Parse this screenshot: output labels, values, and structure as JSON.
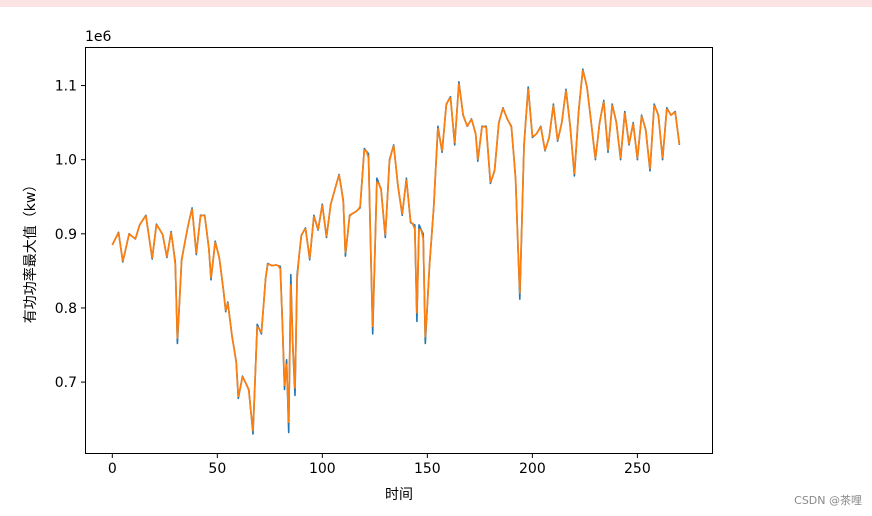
{
  "colors": {
    "top_bar": "#fde4e4",
    "series_blue": "#1f77b4",
    "series_orange": "#ff7f0e",
    "axes": "#000000"
  },
  "watermark": "CSDN @茶哩",
  "chart_data": {
    "type": "line",
    "title": "",
    "xlabel": "时间",
    "ylabel": "有功功率最大值（kw）",
    "offset_text": "1e6",
    "xlim": [
      -13,
      286
    ],
    "ylim": [
      603000,
      1152000
    ],
    "xticks": [
      0,
      50,
      100,
      150,
      200,
      250
    ],
    "yticks": [
      700000,
      800000,
      900000,
      1000000,
      1100000
    ],
    "ytick_labels": [
      "0.7",
      "0.8",
      "0.9",
      "1.0",
      "1.1"
    ],
    "grid": false,
    "legend": "none",
    "anchors": [
      [
        0,
        885000
      ],
      [
        3,
        902000
      ],
      [
        5,
        862000
      ],
      [
        8,
        900000
      ],
      [
        11,
        893000
      ],
      [
        13,
        912000
      ],
      [
        16,
        925000
      ],
      [
        19,
        866000
      ],
      [
        21,
        913000
      ],
      [
        24,
        899000
      ],
      [
        26,
        868000
      ],
      [
        28,
        903000
      ],
      [
        30,
        862000
      ],
      [
        31,
        752000
      ],
      [
        33,
        865000
      ],
      [
        36,
        910000
      ],
      [
        38,
        935000
      ],
      [
        40,
        872000
      ],
      [
        42,
        925000
      ],
      [
        44,
        925000
      ],
      [
        46,
        880000
      ],
      [
        47,
        838000
      ],
      [
        49,
        890000
      ],
      [
        51,
        867000
      ],
      [
        53,
        822000
      ],
      [
        54,
        795000
      ],
      [
        55,
        808000
      ],
      [
        57,
        762000
      ],
      [
        59,
        728000
      ],
      [
        60,
        678000
      ],
      [
        62,
        708000
      ],
      [
        65,
        690000
      ],
      [
        67,
        630000
      ],
      [
        69,
        778000
      ],
      [
        71,
        765000
      ],
      [
        73,
        840000
      ],
      [
        74,
        860000
      ],
      [
        76,
        857000
      ],
      [
        78,
        858000
      ],
      [
        80,
        856000
      ],
      [
        81,
        780000
      ],
      [
        82,
        690000
      ],
      [
        83,
        730000
      ],
      [
        84,
        632000
      ],
      [
        85,
        845000
      ],
      [
        86,
        745000
      ],
      [
        87,
        682000
      ],
      [
        88,
        845000
      ],
      [
        90,
        898000
      ],
      [
        92,
        908000
      ],
      [
        94,
        865000
      ],
      [
        96,
        925000
      ],
      [
        98,
        905000
      ],
      [
        100,
        940000
      ],
      [
        102,
        895000
      ],
      [
        104,
        940000
      ],
      [
        106,
        960000
      ],
      [
        108,
        980000
      ],
      [
        110,
        945000
      ],
      [
        111,
        870000
      ],
      [
        113,
        925000
      ],
      [
        116,
        930000
      ],
      [
        118,
        935000
      ],
      [
        120,
        1015000
      ],
      [
        122,
        1008000
      ],
      [
        124,
        765000
      ],
      [
        126,
        975000
      ],
      [
        128,
        960000
      ],
      [
        130,
        895000
      ],
      [
        132,
        1000000
      ],
      [
        134,
        1020000
      ],
      [
        136,
        965000
      ],
      [
        138,
        925000
      ],
      [
        140,
        975000
      ],
      [
        142,
        915000
      ],
      [
        144,
        912000
      ],
      [
        145,
        782000
      ],
      [
        146,
        912000
      ],
      [
        148,
        900000
      ],
      [
        149,
        752000
      ],
      [
        151,
        858000
      ],
      [
        153,
        935000
      ],
      [
        155,
        1045000
      ],
      [
        157,
        1010000
      ],
      [
        159,
        1075000
      ],
      [
        161,
        1085000
      ],
      [
        163,
        1020000
      ],
      [
        165,
        1105000
      ],
      [
        167,
        1060000
      ],
      [
        169,
        1045000
      ],
      [
        171,
        1055000
      ],
      [
        173,
        1035000
      ],
      [
        174,
        998000
      ],
      [
        176,
        1045000
      ],
      [
        178,
        1045000
      ],
      [
        180,
        968000
      ],
      [
        182,
        985000
      ],
      [
        184,
        1050000
      ],
      [
        186,
        1070000
      ],
      [
        188,
        1055000
      ],
      [
        190,
        1045000
      ],
      [
        192,
        975000
      ],
      [
        194,
        812000
      ],
      [
        196,
        1020000
      ],
      [
        198,
        1098000
      ],
      [
        200,
        1030000
      ],
      [
        202,
        1035000
      ],
      [
        204,
        1045000
      ],
      [
        206,
        1012000
      ],
      [
        208,
        1030000
      ],
      [
        210,
        1075000
      ],
      [
        212,
        1025000
      ],
      [
        214,
        1050000
      ],
      [
        216,
        1095000
      ],
      [
        218,
        1045000
      ],
      [
        220,
        978000
      ],
      [
        222,
        1065000
      ],
      [
        224,
        1122000
      ],
      [
        226,
        1098000
      ],
      [
        228,
        1050000
      ],
      [
        230,
        1000000
      ],
      [
        232,
        1050000
      ],
      [
        234,
        1080000
      ],
      [
        236,
        1010000
      ],
      [
        238,
        1075000
      ],
      [
        240,
        1050000
      ],
      [
        242,
        1000000
      ],
      [
        244,
        1065000
      ],
      [
        246,
        1020000
      ],
      [
        248,
        1050000
      ],
      [
        250,
        1000000
      ],
      [
        252,
        1060000
      ],
      [
        254,
        1040000
      ],
      [
        256,
        985000
      ],
      [
        258,
        1075000
      ],
      [
        260,
        1060000
      ],
      [
        262,
        1000000
      ],
      [
        264,
        1070000
      ],
      [
        266,
        1060000
      ],
      [
        268,
        1065000
      ],
      [
        270,
        1020000
      ]
    ],
    "series": [
      {
        "color": "#1f77b4",
        "values_ref": "anchors",
        "amplitude": 1.0
      },
      {
        "color": "#ff7f0e",
        "values_ref": "anchors",
        "amplitude": 0.82
      }
    ]
  }
}
